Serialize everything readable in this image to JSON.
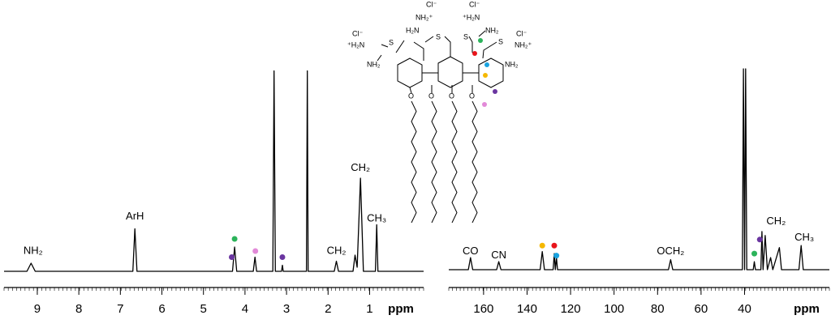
{
  "chart_data": [
    {
      "type": "line",
      "xlabel": "ppm",
      "xlim": [
        9.8,
        -0.3
      ],
      "xticks": [
        9,
        8,
        7,
        6,
        5,
        4,
        3,
        2,
        1
      ],
      "ylim": [
        0,
        100
      ],
      "color": "#000000",
      "x": [
        9.8,
        9.25,
        9.15,
        9.05,
        6.7,
        6.65,
        6.6,
        4.3,
        4.25,
        4.2,
        3.8,
        3.76,
        3.72,
        3.33,
        3.3,
        3.27,
        3.12,
        3.1,
        3.08,
        2.52,
        2.5,
        2.48,
        1.85,
        1.8,
        1.75,
        1.4,
        1.35,
        1.3,
        1.22,
        1.15,
        0.86,
        0.83,
        0.8,
        -0.3
      ],
      "values": [
        0,
        0,
        4,
        0,
        0,
        21,
        0,
        0,
        12,
        0,
        0,
        7,
        0,
        0,
        99,
        0,
        0,
        3,
        0,
        0,
        99,
        0,
        0,
        5,
        0,
        0,
        8,
        2,
        46,
        0,
        0,
        23,
        0,
        0
      ],
      "annotations": [
        {
          "text": "NH₂",
          "x": 9.1,
          "y": 10
        },
        {
          "text": "ArH",
          "x": 6.65,
          "y": 27
        },
        {
          "text": "CH₂",
          "x": 1.22,
          "y": 51
        },
        {
          "text": "CH₃",
          "x": 0.83,
          "y": 26
        },
        {
          "text": "CH₂",
          "x": 1.8,
          "y": 10
        }
      ],
      "markers": [
        {
          "x": 4.25,
          "y": 16,
          "color": "#2bb35a"
        },
        {
          "x": 4.32,
          "y": 7,
          "color": "#6a35a0"
        },
        {
          "x": 3.75,
          "y": 10,
          "color": "#e28ad8"
        },
        {
          "x": 3.1,
          "y": 7,
          "color": "#6a35a0"
        }
      ]
    },
    {
      "type": "line",
      "xlabel": "ppm",
      "xlim": [
        176,
        1
      ],
      "xticks": [
        160,
        140,
        120,
        100,
        80,
        60,
        40
      ],
      "ylim": [
        0,
        100
      ],
      "color": "#000000",
      "x": [
        176,
        167,
        166,
        165,
        154,
        153,
        152,
        134,
        133,
        132,
        128,
        127.5,
        127,
        126.5,
        126,
        75,
        74,
        73,
        41,
        40.5,
        40,
        39.5,
        39,
        36,
        35.5,
        35,
        32.5,
        32,
        31.5,
        30.5,
        29.5,
        28,
        27,
        24,
        23,
        15,
        14,
        13,
        1
      ],
      "values": [
        0,
        0,
        6,
        0,
        0,
        4,
        0,
        0,
        9,
        0,
        0,
        8,
        0,
        6,
        0,
        0,
        5,
        0,
        0,
        100,
        0,
        100,
        0,
        0,
        4,
        0,
        0,
        19,
        0,
        17,
        0,
        6,
        0,
        11,
        0,
        0,
        12,
        0,
        0
      ],
      "annotations": [
        {
          "text": "CO",
          "x": 166,
          "y": 9
        },
        {
          "text": "CN",
          "x": 153,
          "y": 7
        },
        {
          "text": "OCH₂",
          "x": 74,
          "y": 9
        },
        {
          "text": "CH₂",
          "x": 25.5,
          "y": 24
        },
        {
          "text": "CH₃",
          "x": 12.5,
          "y": 16
        }
      ],
      "markers": [
        {
          "x": 133,
          "y": 12,
          "color": "#f5b800"
        },
        {
          "x": 127.5,
          "y": 12,
          "color": "#e8141b"
        },
        {
          "x": 126.5,
          "y": 7,
          "color": "#1aa3e0"
        },
        {
          "x": 35.5,
          "y": 8,
          "color": "#2bb35a"
        },
        {
          "x": 33,
          "y": 15,
          "color": "#6a35a0"
        }
      ]
    }
  ],
  "structure": {
    "labels": [
      "Cl⁻",
      "Cl⁻",
      "Cl⁻",
      "Cl⁻",
      "NH₂⁺",
      "H₂N",
      "S",
      "⁺H₂N",
      "S",
      "NH₂",
      "⁺H₂N",
      "S",
      "NH₂",
      "S",
      "NH₂⁺",
      "NH₂",
      "O",
      "O",
      "O",
      "O"
    ]
  }
}
